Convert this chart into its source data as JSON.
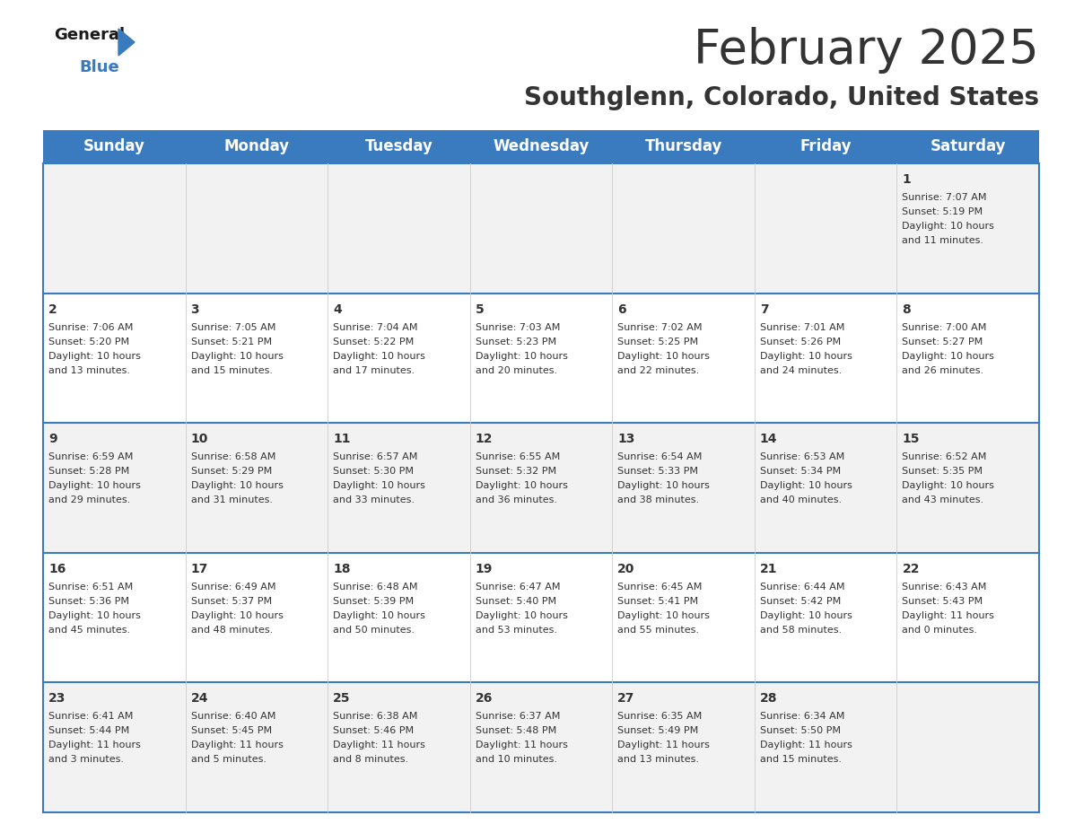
{
  "title": "February 2025",
  "subtitle": "Southglenn, Colorado, United States",
  "header_color": "#3a7abf",
  "header_text_color": "#ffffff",
  "day_names": [
    "Sunday",
    "Monday",
    "Tuesday",
    "Wednesday",
    "Thursday",
    "Friday",
    "Saturday"
  ],
  "title_fontsize": 38,
  "subtitle_fontsize": 20,
  "header_fontsize": 12,
  "cell_day_fontsize": 10,
  "cell_info_fontsize": 8,
  "bg_color": "#ffffff",
  "cell_bg_row0": "#f2f2f2",
  "cell_bg_row1": "#ffffff",
  "cell_bg_row2": "#f2f2f2",
  "cell_bg_row3": "#ffffff",
  "cell_bg_row4": "#f2f2f2",
  "border_color": "#3a7abf",
  "divider_color": "#cccccc",
  "text_color": "#333333",
  "logo_general_color": "#1a1a1a",
  "logo_blue_color": "#3a7abf",
  "logo_triangle_color": "#3a7abf",
  "days_data": [
    {
      "day": 1,
      "col": 6,
      "row": 0,
      "sunrise": "7:07 AM",
      "sunset": "5:19 PM",
      "daylight": "10 hours and 11 minutes."
    },
    {
      "day": 2,
      "col": 0,
      "row": 1,
      "sunrise": "7:06 AM",
      "sunset": "5:20 PM",
      "daylight": "10 hours and 13 minutes."
    },
    {
      "day": 3,
      "col": 1,
      "row": 1,
      "sunrise": "7:05 AM",
      "sunset": "5:21 PM",
      "daylight": "10 hours and 15 minutes."
    },
    {
      "day": 4,
      "col": 2,
      "row": 1,
      "sunrise": "7:04 AM",
      "sunset": "5:22 PM",
      "daylight": "10 hours and 17 minutes."
    },
    {
      "day": 5,
      "col": 3,
      "row": 1,
      "sunrise": "7:03 AM",
      "sunset": "5:23 PM",
      "daylight": "10 hours and 20 minutes."
    },
    {
      "day": 6,
      "col": 4,
      "row": 1,
      "sunrise": "7:02 AM",
      "sunset": "5:25 PM",
      "daylight": "10 hours and 22 minutes."
    },
    {
      "day": 7,
      "col": 5,
      "row": 1,
      "sunrise": "7:01 AM",
      "sunset": "5:26 PM",
      "daylight": "10 hours and 24 minutes."
    },
    {
      "day": 8,
      "col": 6,
      "row": 1,
      "sunrise": "7:00 AM",
      "sunset": "5:27 PM",
      "daylight": "10 hours and 26 minutes."
    },
    {
      "day": 9,
      "col": 0,
      "row": 2,
      "sunrise": "6:59 AM",
      "sunset": "5:28 PM",
      "daylight": "10 hours and 29 minutes."
    },
    {
      "day": 10,
      "col": 1,
      "row": 2,
      "sunrise": "6:58 AM",
      "sunset": "5:29 PM",
      "daylight": "10 hours and 31 minutes."
    },
    {
      "day": 11,
      "col": 2,
      "row": 2,
      "sunrise": "6:57 AM",
      "sunset": "5:30 PM",
      "daylight": "10 hours and 33 minutes."
    },
    {
      "day": 12,
      "col": 3,
      "row": 2,
      "sunrise": "6:55 AM",
      "sunset": "5:32 PM",
      "daylight": "10 hours and 36 minutes."
    },
    {
      "day": 13,
      "col": 4,
      "row": 2,
      "sunrise": "6:54 AM",
      "sunset": "5:33 PM",
      "daylight": "10 hours and 38 minutes."
    },
    {
      "day": 14,
      "col": 5,
      "row": 2,
      "sunrise": "6:53 AM",
      "sunset": "5:34 PM",
      "daylight": "10 hours and 40 minutes."
    },
    {
      "day": 15,
      "col": 6,
      "row": 2,
      "sunrise": "6:52 AM",
      "sunset": "5:35 PM",
      "daylight": "10 hours and 43 minutes."
    },
    {
      "day": 16,
      "col": 0,
      "row": 3,
      "sunrise": "6:51 AM",
      "sunset": "5:36 PM",
      "daylight": "10 hours and 45 minutes."
    },
    {
      "day": 17,
      "col": 1,
      "row": 3,
      "sunrise": "6:49 AM",
      "sunset": "5:37 PM",
      "daylight": "10 hours and 48 minutes."
    },
    {
      "day": 18,
      "col": 2,
      "row": 3,
      "sunrise": "6:48 AM",
      "sunset": "5:39 PM",
      "daylight": "10 hours and 50 minutes."
    },
    {
      "day": 19,
      "col": 3,
      "row": 3,
      "sunrise": "6:47 AM",
      "sunset": "5:40 PM",
      "daylight": "10 hours and 53 minutes."
    },
    {
      "day": 20,
      "col": 4,
      "row": 3,
      "sunrise": "6:45 AM",
      "sunset": "5:41 PM",
      "daylight": "10 hours and 55 minutes."
    },
    {
      "day": 21,
      "col": 5,
      "row": 3,
      "sunrise": "6:44 AM",
      "sunset": "5:42 PM",
      "daylight": "10 hours and 58 minutes."
    },
    {
      "day": 22,
      "col": 6,
      "row": 3,
      "sunrise": "6:43 AM",
      "sunset": "5:43 PM",
      "daylight": "11 hours and 0 minutes."
    },
    {
      "day": 23,
      "col": 0,
      "row": 4,
      "sunrise": "6:41 AM",
      "sunset": "5:44 PM",
      "daylight": "11 hours and 3 minutes."
    },
    {
      "day": 24,
      "col": 1,
      "row": 4,
      "sunrise": "6:40 AM",
      "sunset": "5:45 PM",
      "daylight": "11 hours and 5 minutes."
    },
    {
      "day": 25,
      "col": 2,
      "row": 4,
      "sunrise": "6:38 AM",
      "sunset": "5:46 PM",
      "daylight": "11 hours and 8 minutes."
    },
    {
      "day": 26,
      "col": 3,
      "row": 4,
      "sunrise": "6:37 AM",
      "sunset": "5:48 PM",
      "daylight": "11 hours and 10 minutes."
    },
    {
      "day": 27,
      "col": 4,
      "row": 4,
      "sunrise": "6:35 AM",
      "sunset": "5:49 PM",
      "daylight": "11 hours and 13 minutes."
    },
    {
      "day": 28,
      "col": 5,
      "row": 4,
      "sunrise": "6:34 AM",
      "sunset": "5:50 PM",
      "daylight": "11 hours and 15 minutes."
    }
  ]
}
